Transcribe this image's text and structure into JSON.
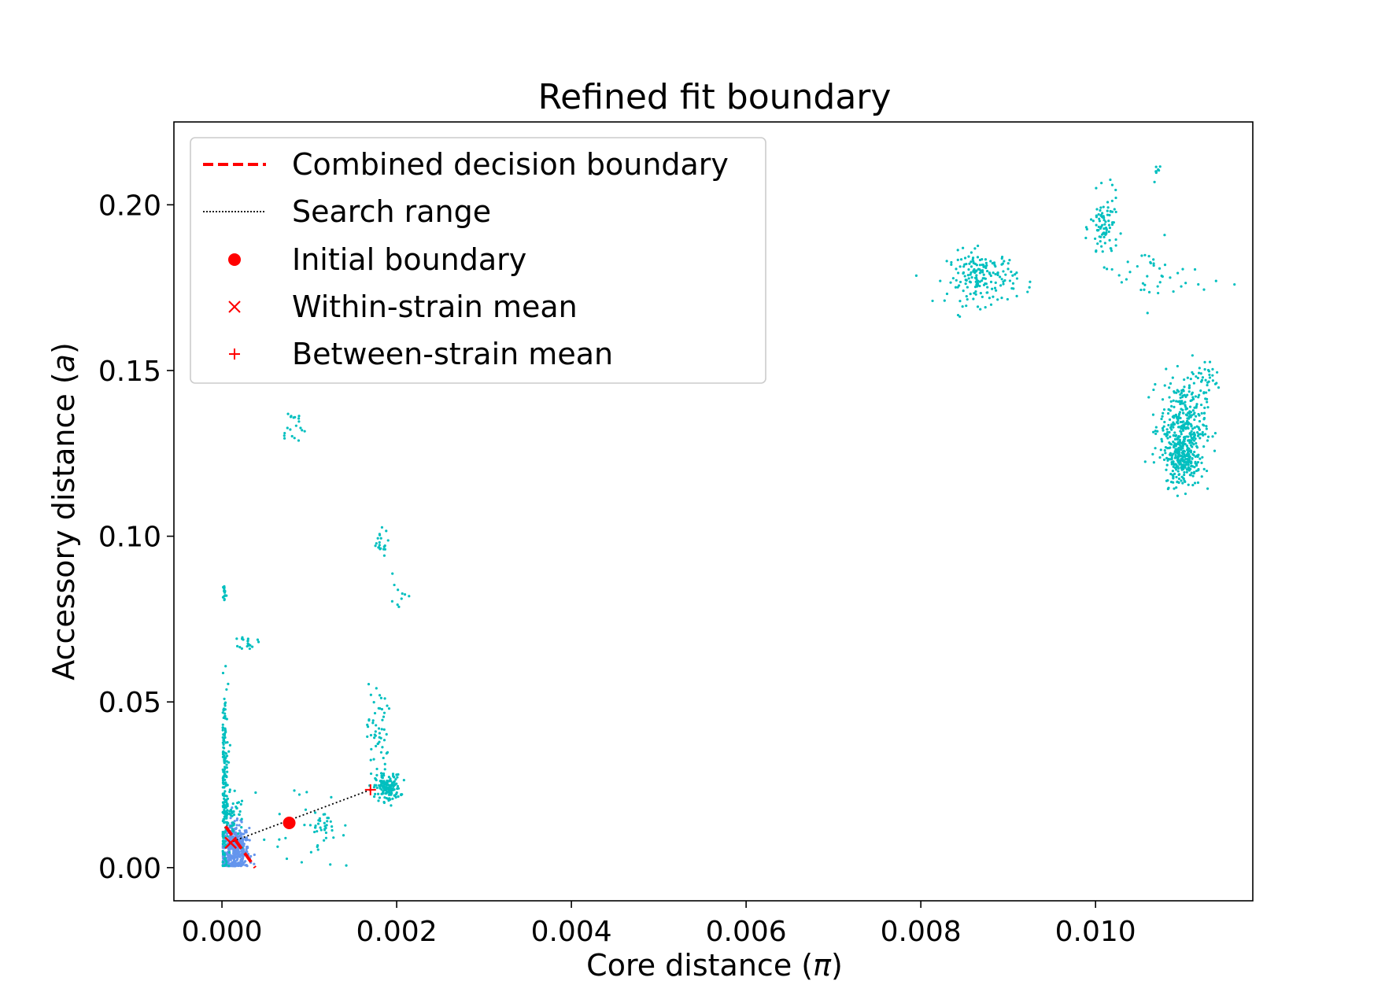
{
  "chart_data": {
    "type": "scatter",
    "title": "Refined fit boundary",
    "xlabel": "Core distance (π)",
    "ylabel": "Accessory distance (a)",
    "xlim": [
      -0.00055,
      0.0118
    ],
    "ylim": [
      -0.01,
      0.225
    ],
    "xticks": [
      "0.000",
      "0.002",
      "0.004",
      "0.006",
      "0.008",
      "0.010"
    ],
    "xtick_values": [
      0.0,
      0.002,
      0.004,
      0.006,
      0.008,
      0.01
    ],
    "yticks": [
      "0.00",
      "0.05",
      "0.10",
      "0.15",
      "0.20"
    ],
    "ytick_values": [
      0.0,
      0.05,
      0.1,
      0.15,
      0.2
    ],
    "grid": false,
    "legend_placement": "top-left",
    "legend": [
      {
        "label": "Combined decision boundary",
        "marker": "dashed-line",
        "color": "#ff0000"
      },
      {
        "label": "Search range",
        "marker": "dotted-line",
        "color": "#000000"
      },
      {
        "label": "Initial boundary",
        "marker": "circle",
        "color": "#ff0000"
      },
      {
        "label": "Within-strain mean",
        "marker": "x",
        "color": "#ff0000"
      },
      {
        "label": "Between-strain mean",
        "marker": "plus",
        "color": "#ff0000"
      }
    ],
    "colors": {
      "within_cluster": "#6495ed",
      "between_cluster": "#00bfbf",
      "markers": "#ff0000"
    },
    "decision_boundary": {
      "x": [
        4e-05,
        0.00038
      ],
      "y": [
        0.0125,
        0.0
      ]
    },
    "search_range": {
      "x": [
        8e-05,
        0.0017
      ],
      "y": [
        0.0075,
        0.0235
      ]
    },
    "initial_boundary": {
      "x": 0.00077,
      "y": 0.0135
    },
    "within_strain_mean": {
      "x": 0.0001,
      "y": 0.0075
    },
    "between_strain_mean": {
      "x": 0.0017,
      "y": 0.0235
    },
    "point_clusters": [
      {
        "series": "within",
        "cx": 0.00015,
        "cy": 0.005,
        "sx": 8e-05,
        "sy": 0.004,
        "n": 450
      },
      {
        "series": "between",
        "cx": 3e-05,
        "cy": 0.025,
        "sx": 2e-05,
        "sy": 0.015,
        "n": 180
      },
      {
        "series": "between",
        "cx": 3e-05,
        "cy": 0.083,
        "sx": 1e-05,
        "sy": 0.0015,
        "n": 15
      },
      {
        "series": "between",
        "cx": 0.0001,
        "cy": 0.016,
        "sx": 8e-05,
        "sy": 0.004,
        "n": 60
      },
      {
        "series": "between",
        "cx": 0.0003,
        "cy": 0.068,
        "sx": 5e-05,
        "sy": 0.001,
        "n": 20
      },
      {
        "series": "between",
        "cx": 0.0008,
        "cy": 0.133,
        "sx": 8e-05,
        "sy": 0.003,
        "n": 20
      },
      {
        "series": "between",
        "cx": 0.0018,
        "cy": 0.098,
        "sx": 5e-05,
        "sy": 0.002,
        "n": 20
      },
      {
        "series": "between",
        "cx": 0.002,
        "cy": 0.08,
        "sx": 6e-05,
        "sy": 0.005,
        "n": 10
      },
      {
        "series": "between",
        "cx": 0.00178,
        "cy": 0.04,
        "sx": 6e-05,
        "sy": 0.008,
        "n": 60
      },
      {
        "series": "between",
        "cx": 0.0019,
        "cy": 0.024,
        "sx": 7e-05,
        "sy": 0.002,
        "n": 150
      },
      {
        "series": "between",
        "cx": 0.00115,
        "cy": 0.013,
        "sx": 0.00012,
        "sy": 0.002,
        "n": 30
      },
      {
        "series": "between",
        "cx": 0.0009,
        "cy": 0.01,
        "sx": 0.0003,
        "sy": 0.008,
        "n": 25
      },
      {
        "series": "between",
        "cx": 0.0087,
        "cy": 0.178,
        "sx": 0.0002,
        "sy": 0.004,
        "n": 180
      },
      {
        "series": "between",
        "cx": 0.0101,
        "cy": 0.193,
        "sx": 8e-05,
        "sy": 0.005,
        "n": 90
      },
      {
        "series": "between",
        "cx": 0.0107,
        "cy": 0.178,
        "sx": 0.0003,
        "sy": 0.005,
        "n": 40
      },
      {
        "series": "between",
        "cx": 0.011,
        "cy": 0.133,
        "sx": 0.00013,
        "sy": 0.007,
        "n": 350
      },
      {
        "series": "between",
        "cx": 0.011,
        "cy": 0.123,
        "sx": 0.0001,
        "sy": 0.004,
        "n": 200
      },
      {
        "series": "between",
        "cx": 0.01125,
        "cy": 0.148,
        "sx": 0.0001,
        "sy": 0.003,
        "n": 30
      },
      {
        "series": "between",
        "cx": 0.0107,
        "cy": 0.21,
        "sx": 3e-05,
        "sy": 0.003,
        "n": 8
      }
    ]
  }
}
